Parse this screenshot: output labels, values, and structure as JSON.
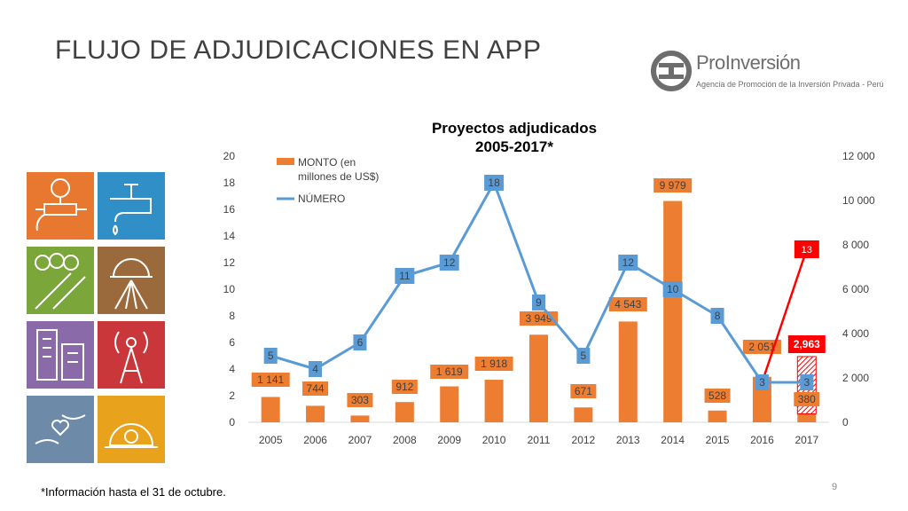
{
  "slide": {
    "title": "FLUJO DE ADJUDICACIONES EN APP",
    "footnote": "*Información hasta el 31 de octubre.",
    "page_number": "9"
  },
  "logo": {
    "name": "ProInversión",
    "tagline": "Agencia de Promoción de la Inversión Privada - Perú"
  },
  "tiles": [
    {
      "icon": "water-meter-icon",
      "color": "#e8782f"
    },
    {
      "icon": "water-tap-icon",
      "color": "#2f8fc6"
    },
    {
      "icon": "road-trees-icon",
      "color": "#7aa63a"
    },
    {
      "icon": "sun-field-icon",
      "color": "#9a6a3c"
    },
    {
      "icon": "buildings-icon",
      "color": "#8a6aa8"
    },
    {
      "icon": "antenna-signal-icon",
      "color": "#c9373a"
    },
    {
      "icon": "hands-heart-icon",
      "color": "#6d8aa8"
    },
    {
      "icon": "hard-hat-icon",
      "color": "#e8a21c"
    }
  ],
  "colors": {
    "bar": "#ed7d31",
    "line": "#5b9bd5",
    "highlight": "#ff0000"
  },
  "chart_data": {
    "type": "bar",
    "title": "Proyectos adjudicados",
    "subtitle": "2005-2017*",
    "categories": [
      "2005",
      "2006",
      "2007",
      "2008",
      "2009",
      "2010",
      "2011",
      "2012",
      "2013",
      "2014",
      "2015",
      "2016",
      "2017"
    ],
    "series": [
      {
        "name": "MONTO (en millones de US$)",
        "type": "bar",
        "axis": "right",
        "values": [
          1141,
          744,
          303,
          912,
          1619,
          1918,
          3949,
          671,
          4543,
          9979,
          528,
          2051,
          380
        ],
        "labels": [
          "1 141",
          "744",
          "303",
          "912",
          "1 619",
          "1 918",
          "3 949",
          "671",
          "4 543",
          "9 979",
          "528",
          "2 051",
          "380"
        ]
      },
      {
        "name": "NÚMERO",
        "type": "line",
        "axis": "left",
        "values": [
          5,
          4,
          6,
          11,
          12,
          18,
          9,
          5,
          12,
          10,
          8,
          3,
          3
        ],
        "labels": [
          "5",
          "4",
          "6",
          "11",
          "12",
          "18",
          "9",
          "5",
          "12",
          "10",
          "8",
          "3",
          "3"
        ]
      }
    ],
    "highlight_2017": {
      "bar_value": 2963,
      "bar_label": "2,963",
      "number_value": 13,
      "number_label": "13"
    },
    "left_axis": {
      "min": 0,
      "max": 20,
      "ticks": [
        "0",
        "2",
        "4",
        "6",
        "8",
        "10",
        "12",
        "14",
        "16",
        "18",
        "20"
      ]
    },
    "right_axis": {
      "min": 0,
      "max": 12000,
      "ticks": [
        "0",
        "2 000",
        "4 000",
        "6 000",
        "8 000",
        "10 000",
        "12 000"
      ]
    },
    "legend": {
      "position": "top-left",
      "bar_label_line1": "MONTO (en",
      "bar_label_line2": "millones de US$)",
      "line_label": "NÚMERO"
    },
    "grid": false
  }
}
